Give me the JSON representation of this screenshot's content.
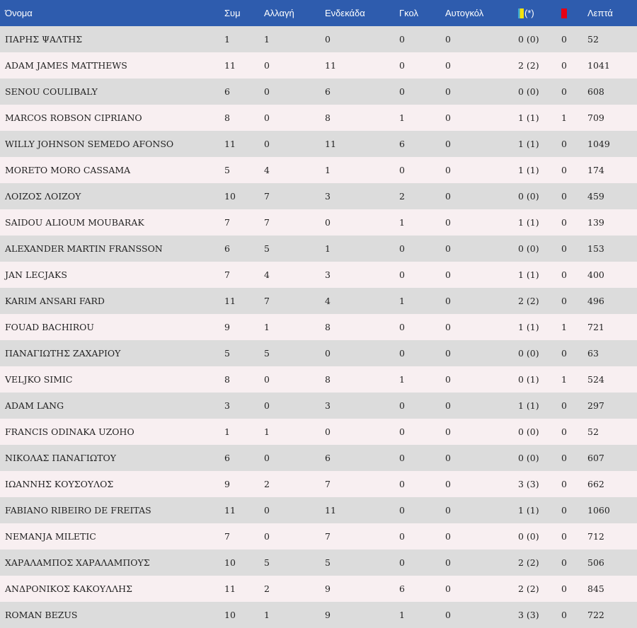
{
  "headers": {
    "name": "Όνομα",
    "apps": "Συμ",
    "sub": "Αλλαγή",
    "starts": "Ενδεκάδα",
    "goals": "Γκολ",
    "own_goals": "Αυτογκόλ",
    "yellow_suffix": "(*)",
    "minutes": "Λεπτά"
  },
  "colors": {
    "header_bg": "#2e5cae",
    "yellow_card": "#f4e20c",
    "yellow_card_accent": "#3aa7d6",
    "red_card": "#e60012",
    "row_odd": "#dcdcdc",
    "row_even": "#f8eff1"
  },
  "rows": [
    {
      "name": "ΠΑΡΗΣ ΨΑΛΤΗΣ",
      "apps": "1",
      "sub": "1",
      "starts": "0",
      "goals": "0",
      "own_goals": "0",
      "yellow": "0 (0)",
      "red": "0",
      "minutes": "52"
    },
    {
      "name": "ADAM JAMES MATTHEWS",
      "apps": "11",
      "sub": "0",
      "starts": "11",
      "goals": "0",
      "own_goals": "0",
      "yellow": "2 (2)",
      "red": "0",
      "minutes": "1041"
    },
    {
      "name": "SENOU COULIBALY",
      "apps": "6",
      "sub": "0",
      "starts": "6",
      "goals": "0",
      "own_goals": "0",
      "yellow": "0 (0)",
      "red": "0",
      "minutes": "608"
    },
    {
      "name": "MARCOS ROBSON CIPRIANO",
      "apps": "8",
      "sub": "0",
      "starts": "8",
      "goals": "1",
      "own_goals": "0",
      "yellow": "1 (1)",
      "red": "1",
      "minutes": "709"
    },
    {
      "name": "WILLY JOHNSON SEMEDO AFONSO",
      "apps": "11",
      "sub": "0",
      "starts": "11",
      "goals": "6",
      "own_goals": "0",
      "yellow": "1 (1)",
      "red": "0",
      "minutes": "1049"
    },
    {
      "name": "MORETO MORO CASSAMA",
      "apps": "5",
      "sub": "4",
      "starts": "1",
      "goals": "0",
      "own_goals": "0",
      "yellow": "1 (1)",
      "red": "0",
      "minutes": "174"
    },
    {
      "name": "ΛΟΙΖΟΣ ΛΟΙΖΟΥ",
      "apps": "10",
      "sub": "7",
      "starts": "3",
      "goals": "2",
      "own_goals": "0",
      "yellow": "0 (0)",
      "red": "0",
      "minutes": "459"
    },
    {
      "name": "SAIDOU ALIOUM MOUBARAK",
      "apps": "7",
      "sub": "7",
      "starts": "0",
      "goals": "1",
      "own_goals": "0",
      "yellow": "1 (1)",
      "red": "0",
      "minutes": "139"
    },
    {
      "name": "ALEXANDER MARTIN FRANSSON",
      "apps": "6",
      "sub": "5",
      "starts": "1",
      "goals": "0",
      "own_goals": "0",
      "yellow": "0 (0)",
      "red": "0",
      "minutes": "153"
    },
    {
      "name": "JAN LECJAKS",
      "apps": "7",
      "sub": "4",
      "starts": "3",
      "goals": "0",
      "own_goals": "0",
      "yellow": "1 (1)",
      "red": "0",
      "minutes": "400"
    },
    {
      "name": "KARIM ANSARI FARD",
      "apps": "11",
      "sub": "7",
      "starts": "4",
      "goals": "1",
      "own_goals": "0",
      "yellow": "2 (2)",
      "red": "0",
      "minutes": "496"
    },
    {
      "name": "FOUAD BACHIROU",
      "apps": "9",
      "sub": "1",
      "starts": "8",
      "goals": "0",
      "own_goals": "0",
      "yellow": "1 (1)",
      "red": "1",
      "minutes": "721"
    },
    {
      "name": "ΠΑΝΑΓΙΩΤΗΣ ΖΑΧΑΡΙΟΥ",
      "apps": "5",
      "sub": "5",
      "starts": "0",
      "goals": "0",
      "own_goals": "0",
      "yellow": "0 (0)",
      "red": "0",
      "minutes": "63"
    },
    {
      "name": "VELJKO SIMIC",
      "apps": "8",
      "sub": "0",
      "starts": "8",
      "goals": "1",
      "own_goals": "0",
      "yellow": "0 (1)",
      "red": "1",
      "minutes": "524"
    },
    {
      "name": "ADAM LANG",
      "apps": "3",
      "sub": "0",
      "starts": "3",
      "goals": "0",
      "own_goals": "0",
      "yellow": "1 (1)",
      "red": "0",
      "minutes": "297"
    },
    {
      "name": "FRANCIS ODINAKA UZOHO",
      "apps": "1",
      "sub": "1",
      "starts": "0",
      "goals": "0",
      "own_goals": "0",
      "yellow": "0 (0)",
      "red": "0",
      "minutes": "52"
    },
    {
      "name": "ΝΙΚΟΛΑΣ ΠΑΝΑΓΙΩΤΟΥ",
      "apps": "6",
      "sub": "0",
      "starts": "6",
      "goals": "0",
      "own_goals": "0",
      "yellow": "0 (0)",
      "red": "0",
      "minutes": "607"
    },
    {
      "name": "ΙΩΑΝΝΗΣ ΚΟΥΣΟΥΛΟΣ",
      "apps": "9",
      "sub": "2",
      "starts": "7",
      "goals": "0",
      "own_goals": "0",
      "yellow": "3 (3)",
      "red": "0",
      "minutes": "662"
    },
    {
      "name": "FABIANO RIBEIRO DE FREITAS",
      "apps": "11",
      "sub": "0",
      "starts": "11",
      "goals": "0",
      "own_goals": "0",
      "yellow": "1 (1)",
      "red": "0",
      "minutes": "1060"
    },
    {
      "name": "NEMANJA MILETIC",
      "apps": "7",
      "sub": "0",
      "starts": "7",
      "goals": "0",
      "own_goals": "0",
      "yellow": "0 (0)",
      "red": "0",
      "minutes": "712"
    },
    {
      "name": "ΧΑΡΑΛΑΜΠΟΣ ΧΑΡΑΛΑΜΠΟΥΣ",
      "apps": "10",
      "sub": "5",
      "starts": "5",
      "goals": "0",
      "own_goals": "0",
      "yellow": "2 (2)",
      "red": "0",
      "minutes": "506"
    },
    {
      "name": "ΑΝΔΡΟΝΙΚΟΣ ΚΑΚΟΥΛΛΗΣ",
      "apps": "11",
      "sub": "2",
      "starts": "9",
      "goals": "6",
      "own_goals": "0",
      "yellow": "2 (2)",
      "red": "0",
      "minutes": "845"
    },
    {
      "name": "ROMAN BEZUS",
      "apps": "10",
      "sub": "1",
      "starts": "9",
      "goals": "1",
      "own_goals": "0",
      "yellow": "3 (3)",
      "red": "0",
      "minutes": "722"
    }
  ]
}
